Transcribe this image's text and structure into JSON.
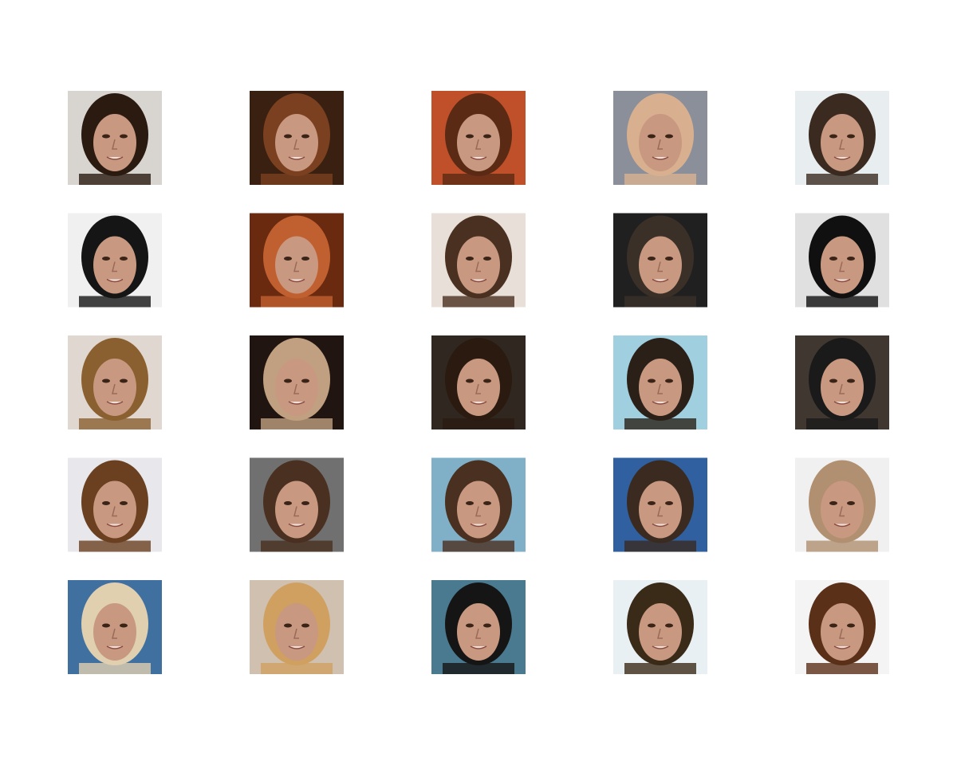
{
  "grid": {
    "rows": 5,
    "columns": 5,
    "tiles": [
      {
        "background": "#d8d4d0",
        "hair": "#2a1a10"
      },
      {
        "background": "#3a2010",
        "hair": "#7a4020"
      },
      {
        "background": "#c0502a",
        "hair": "#5a2a14"
      },
      {
        "background": "#8a8f9a",
        "hair": "#d8b090"
      },
      {
        "background": "#e8eef0",
        "hair": "#3a2a20"
      },
      {
        "background": "#f0f0f0",
        "hair": "#151515"
      },
      {
        "background": "#6a2a10",
        "hair": "#c06030"
      },
      {
        "background": "#e8e0d8",
        "hair": "#4a3020"
      },
      {
        "background": "#202020",
        "hair": "#3a3028"
      },
      {
        "background": "#e0e0e0",
        "hair": "#101010"
      },
      {
        "background": "#e0d8d0",
        "hair": "#8a6030"
      },
      {
        "background": "#201510",
        "hair": "#c0a080"
      },
      {
        "background": "#302820",
        "hair": "#2a1a10"
      },
      {
        "background": "#a0d0e0",
        "hair": "#2a2018"
      },
      {
        "background": "#403830",
        "hair": "#1a1a1a"
      },
      {
        "background": "#e8e8ec",
        "hair": "#6a4020"
      },
      {
        "background": "#707070",
        "hair": "#4a3020"
      },
      {
        "background": "#80b0c8",
        "hair": "#4a3020"
      },
      {
        "background": "#3060a0",
        "hair": "#3a2a20"
      },
      {
        "background": "#f0f0f0",
        "hair": "#b09070"
      },
      {
        "background": "#4070a0",
        "hair": "#e0d0b0"
      },
      {
        "background": "#d0c0b0",
        "hair": "#d0a060"
      },
      {
        "background": "#4a7a90",
        "hair": "#151515"
      },
      {
        "background": "#e8f0f4",
        "hair": "#3a2a18"
      },
      {
        "background": "#f4f4f4",
        "hair": "#5a3018"
      }
    ]
  }
}
